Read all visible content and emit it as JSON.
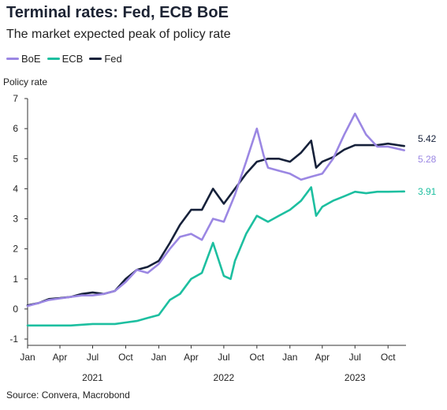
{
  "title": "Terminal rates: Fed, ECB BoE",
  "subtitle": "The market expected peak of policy rate",
  "source": "Source: Convera, Macrobond",
  "legend": [
    {
      "name": "BoE",
      "color": "#9b87e3"
    },
    {
      "name": "ECB",
      "color": "#1dbfa0"
    },
    {
      "name": "Fed",
      "color": "#16213a"
    }
  ],
  "chart_data": {
    "type": "line",
    "ylabel": "Policy rate",
    "ylim": [
      -1,
      7
    ],
    "yticks": [
      -1,
      0,
      1,
      2,
      3,
      4,
      5,
      6,
      7
    ],
    "xlim": [
      "2021-01-01",
      "2023-11-20"
    ],
    "xticks": [
      {
        "date": "2021-01-01",
        "label": "Jan"
      },
      {
        "date": "2021-04-01",
        "label": "Apr"
      },
      {
        "date": "2021-07-01",
        "label": "Jul"
      },
      {
        "date": "2021-10-01",
        "label": "Oct"
      },
      {
        "date": "2022-01-01",
        "label": "Jan"
      },
      {
        "date": "2022-04-01",
        "label": "Apr"
      },
      {
        "date": "2022-07-01",
        "label": "Jul"
      },
      {
        "date": "2022-10-01",
        "label": "Oct"
      },
      {
        "date": "2023-01-01",
        "label": "Jan"
      },
      {
        "date": "2023-04-01",
        "label": "Apr"
      },
      {
        "date": "2023-07-01",
        "label": "Jul"
      },
      {
        "date": "2023-10-01",
        "label": "Oct"
      }
    ],
    "year_labels": [
      {
        "date": "2021-07-01",
        "label": "2021"
      },
      {
        "date": "2022-07-01",
        "label": "2022"
      },
      {
        "date": "2023-07-01",
        "label": "2023"
      }
    ],
    "series": [
      {
        "name": "Fed",
        "color": "#16213a",
        "end_label": "5.42",
        "points": [
          [
            "2021-01-01",
            0.12
          ],
          [
            "2021-02-01",
            0.2
          ],
          [
            "2021-03-01",
            0.33
          ],
          [
            "2021-04-01",
            0.36
          ],
          [
            "2021-05-01",
            0.4
          ],
          [
            "2021-06-01",
            0.5
          ],
          [
            "2021-07-01",
            0.55
          ],
          [
            "2021-08-01",
            0.5
          ],
          [
            "2021-09-01",
            0.6
          ],
          [
            "2021-10-01",
            1.0
          ],
          [
            "2021-11-01",
            1.3
          ],
          [
            "2021-12-01",
            1.4
          ],
          [
            "2022-01-01",
            1.6
          ],
          [
            "2022-02-01",
            2.2
          ],
          [
            "2022-03-01",
            2.8
          ],
          [
            "2022-04-01",
            3.3
          ],
          [
            "2022-05-01",
            3.3
          ],
          [
            "2022-06-01",
            4.0
          ],
          [
            "2022-07-01",
            3.5
          ],
          [
            "2022-08-01",
            4.0
          ],
          [
            "2022-09-01",
            4.5
          ],
          [
            "2022-10-01",
            4.9
          ],
          [
            "2022-11-01",
            5.0
          ],
          [
            "2022-12-01",
            5.0
          ],
          [
            "2023-01-01",
            4.9
          ],
          [
            "2023-02-01",
            5.2
          ],
          [
            "2023-03-01",
            5.6
          ],
          [
            "2023-03-15",
            4.7
          ],
          [
            "2023-04-01",
            4.9
          ],
          [
            "2023-05-01",
            5.05
          ],
          [
            "2023-06-01",
            5.3
          ],
          [
            "2023-07-01",
            5.45
          ],
          [
            "2023-08-01",
            5.45
          ],
          [
            "2023-09-01",
            5.45
          ],
          [
            "2023-10-01",
            5.5
          ],
          [
            "2023-11-15",
            5.42
          ]
        ]
      },
      {
        "name": "BoE",
        "color": "#9b87e3",
        "end_label": "5.28",
        "points": [
          [
            "2021-01-01",
            0.1
          ],
          [
            "2021-02-01",
            0.2
          ],
          [
            "2021-03-01",
            0.3
          ],
          [
            "2021-04-01",
            0.35
          ],
          [
            "2021-05-01",
            0.4
          ],
          [
            "2021-06-01",
            0.45
          ],
          [
            "2021-07-01",
            0.45
          ],
          [
            "2021-08-01",
            0.5
          ],
          [
            "2021-09-01",
            0.6
          ],
          [
            "2021-10-01",
            0.9
          ],
          [
            "2021-11-01",
            1.3
          ],
          [
            "2021-12-01",
            1.2
          ],
          [
            "2022-01-01",
            1.5
          ],
          [
            "2022-02-01",
            2.0
          ],
          [
            "2022-03-01",
            2.4
          ],
          [
            "2022-04-01",
            2.5
          ],
          [
            "2022-05-01",
            2.3
          ],
          [
            "2022-06-01",
            3.0
          ],
          [
            "2022-07-01",
            2.9
          ],
          [
            "2022-08-01",
            3.8
          ],
          [
            "2022-09-01",
            4.9
          ],
          [
            "2022-10-01",
            6.0
          ],
          [
            "2022-10-20",
            5.1
          ],
          [
            "2022-11-01",
            4.7
          ],
          [
            "2022-12-01",
            4.6
          ],
          [
            "2023-01-01",
            4.5
          ],
          [
            "2023-02-01",
            4.3
          ],
          [
            "2023-03-01",
            4.4
          ],
          [
            "2023-04-01",
            4.5
          ],
          [
            "2023-05-01",
            5.0
          ],
          [
            "2023-06-01",
            5.8
          ],
          [
            "2023-07-01",
            6.5
          ],
          [
            "2023-08-01",
            5.8
          ],
          [
            "2023-09-01",
            5.4
          ],
          [
            "2023-10-01",
            5.4
          ],
          [
            "2023-11-15",
            5.28
          ]
        ]
      },
      {
        "name": "ECB",
        "color": "#1dbfa0",
        "end_label": "3.91",
        "points": [
          [
            "2021-01-01",
            -0.55
          ],
          [
            "2021-03-01",
            -0.55
          ],
          [
            "2021-05-01",
            -0.55
          ],
          [
            "2021-07-01",
            -0.5
          ],
          [
            "2021-09-01",
            -0.5
          ],
          [
            "2021-10-01",
            -0.45
          ],
          [
            "2021-11-01",
            -0.4
          ],
          [
            "2021-12-01",
            -0.3
          ],
          [
            "2022-01-01",
            -0.2
          ],
          [
            "2022-02-01",
            0.3
          ],
          [
            "2022-03-01",
            0.5
          ],
          [
            "2022-04-01",
            1.0
          ],
          [
            "2022-05-01",
            1.2
          ],
          [
            "2022-06-01",
            2.2
          ],
          [
            "2022-07-01",
            1.1
          ],
          [
            "2022-07-20",
            1.0
          ],
          [
            "2022-08-01",
            1.6
          ],
          [
            "2022-09-01",
            2.5
          ],
          [
            "2022-10-01",
            3.1
          ],
          [
            "2022-11-01",
            2.9
          ],
          [
            "2022-12-01",
            3.1
          ],
          [
            "2023-01-01",
            3.3
          ],
          [
            "2023-02-01",
            3.6
          ],
          [
            "2023-03-01",
            4.05
          ],
          [
            "2023-03-15",
            3.1
          ],
          [
            "2023-04-01",
            3.4
          ],
          [
            "2023-05-01",
            3.6
          ],
          [
            "2023-06-01",
            3.75
          ],
          [
            "2023-07-01",
            3.9
          ],
          [
            "2023-08-01",
            3.85
          ],
          [
            "2023-09-01",
            3.9
          ],
          [
            "2023-10-01",
            3.9
          ],
          [
            "2023-11-15",
            3.91
          ]
        ]
      }
    ]
  }
}
